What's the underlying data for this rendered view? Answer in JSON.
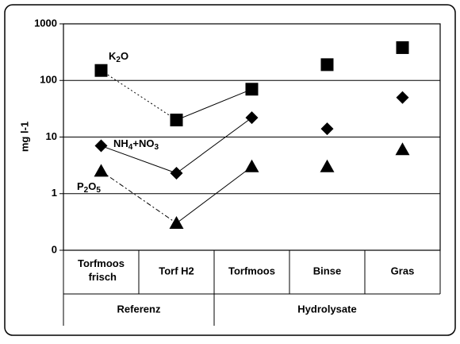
{
  "chart_data": {
    "type": "scatter",
    "y_label": "mg l-1",
    "categories": [
      "Torfmoos frisch",
      "Torf H2",
      "Torfmoos",
      "Binse",
      "Gras"
    ],
    "groups": [
      {
        "label": "Referenz",
        "span": 2
      },
      {
        "label": "Hydrolysate",
        "span": 3
      }
    ],
    "log_y": true,
    "ylim": [
      0.1,
      1000
    ],
    "yticks": [
      {
        "value": 0.1,
        "label": "0"
      },
      1,
      10,
      100,
      1000
    ],
    "grid": true,
    "series": [
      {
        "name": "K2O",
        "color": "#000000",
        "marker": "square",
        "values": [
          150,
          20,
          70,
          190,
          380
        ],
        "line_styles": [
          "dotted",
          "solid"
        ]
      },
      {
        "name": "NH4+NO3",
        "color": "#000000",
        "marker": "diamond",
        "values": [
          7,
          2.3,
          22,
          14,
          50
        ],
        "line_styles": [
          "solid",
          "solid"
        ]
      },
      {
        "name": "P2O5",
        "color": "#000000",
        "marker": "triangle",
        "values": [
          2.5,
          0.3,
          3,
          3,
          6
        ],
        "line_styles": [
          "dashdot",
          "solid"
        ]
      }
    ]
  }
}
